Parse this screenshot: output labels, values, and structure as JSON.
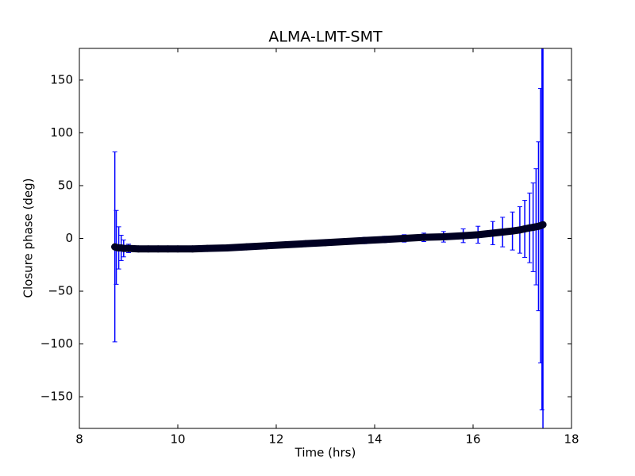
{
  "chart_data": {
    "type": "errorbar",
    "title": "ALMA-LMT-SMT",
    "x_label": "Time (hrs)",
    "y_label": "Closure phase (deg)",
    "x": [
      8.72,
      8.75,
      8.8,
      8.85,
      8.9,
      9.0,
      9.2,
      9.4,
      9.6,
      9.8,
      10.0,
      10.3,
      10.6,
      11.0,
      11.4,
      11.8,
      12.2,
      12.6,
      13.0,
      13.4,
      13.8,
      14.2,
      14.6,
      15.0,
      15.4,
      15.8,
      16.1,
      16.4,
      16.6,
      16.8,
      16.95,
      17.05,
      17.15,
      17.22,
      17.28,
      17.33,
      17.37,
      17.4,
      17.42
    ],
    "values": [
      -8,
      -8.5,
      -9,
      -9,
      -9.5,
      -9.5,
      -10,
      -10,
      -10,
      -10,
      -10,
      -10,
      -9.5,
      -9,
      -8,
      -7,
      -6,
      -5,
      -4,
      -3,
      -2,
      -1,
      0,
      1,
      1.5,
      2.5,
      3.5,
      5,
      6,
      7,
      8,
      9,
      10,
      10.5,
      11,
      11.5,
      12,
      12.5,
      13
    ],
    "errors": [
      90,
      35,
      20,
      12,
      8,
      4,
      2,
      2,
      2,
      2,
      2,
      2,
      2,
      2,
      2,
      2,
      2,
      2,
      2,
      2.5,
      3,
      3,
      3.5,
      4,
      5,
      6.5,
      8,
      11,
      14,
      18,
      22,
      27,
      33,
      42,
      55,
      80,
      130,
      175,
      250
    ],
    "color": "#0000ff",
    "marker_color": "#000022",
    "xlim": [
      8,
      18
    ],
    "xticks": [
      8,
      10,
      12,
      14,
      16,
      18
    ],
    "ylim": [
      -180,
      180
    ],
    "yticks": [
      {
        "value": -150,
        "label": "−150"
      },
      {
        "value": -100,
        "label": "−100"
      },
      {
        "value": -50,
        "label": "−50"
      },
      0,
      50,
      100,
      150
    ]
  }
}
